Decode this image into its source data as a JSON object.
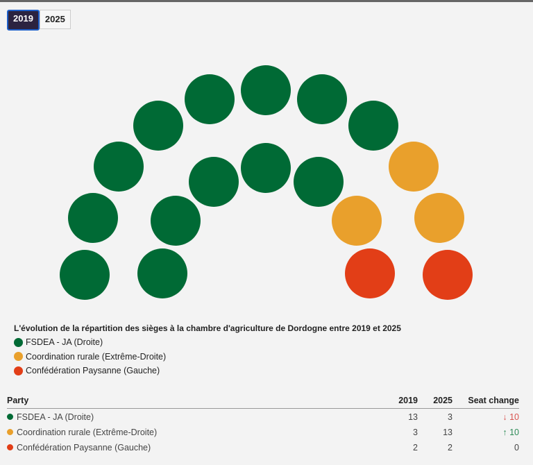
{
  "tabs": [
    {
      "label": "2019",
      "active": true
    },
    {
      "label": "2025",
      "active": false
    }
  ],
  "chart_data": {
    "type": "parliament",
    "title": "L'évolution de la répartition des sièges à la chambre d'agriculture de Dordogne entre 2019 et 2025",
    "selected_year": "2019",
    "total_seats": 18,
    "series": [
      {
        "name": "FSDEA - JA (Droite)",
        "color": "#006a35",
        "seats_2019": 13,
        "seats_2025": 3
      },
      {
        "name": "Coordination rurale (Extrême-Droite)",
        "color": "#e9a02c",
        "seats_2019": 3,
        "seats_2025": 13
      },
      {
        "name": "Confédération Paysanne (Gauche)",
        "color": "#e23e17",
        "seats_2019": 2,
        "seats_2025": 2
      }
    ]
  },
  "table": {
    "headers": [
      "Party",
      "2019",
      "2025",
      "Seat change"
    ],
    "rows": [
      {
        "party": "FSDEA - JA (Droite)",
        "color": "#006a35",
        "y2019": "13",
        "y2025": "3",
        "arrow": "↓",
        "change": "10",
        "change_color": "#d9534f"
      },
      {
        "party": "Coordination rurale (Extrême-Droite)",
        "color": "#e9a02c",
        "y2019": "3",
        "y2025": "13",
        "arrow": "↑",
        "change": "10",
        "change_color": "#2e8b57"
      },
      {
        "party": "Confédération Paysanne (Gauche)",
        "color": "#e23e17",
        "y2019": "2",
        "y2025": "2",
        "arrow": "",
        "change": "0",
        "change_color": "#444"
      }
    ]
  }
}
